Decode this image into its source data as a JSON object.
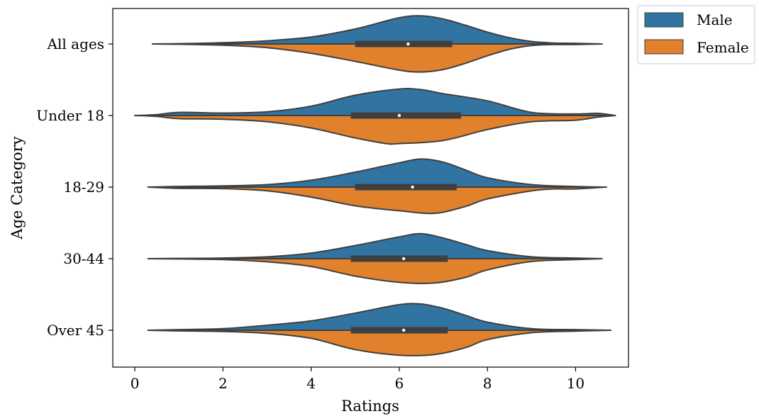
{
  "chart_data": {
    "type": "violin",
    "orientation": "horizontal",
    "split": true,
    "xlabel": "Ratings",
    "ylabel": "Age Category",
    "xlim": [
      -0.5,
      11.2
    ],
    "xticks": [
      0,
      2,
      4,
      6,
      8,
      10
    ],
    "grid": false,
    "legend_placement": "outside top-right",
    "categories": [
      "All ages",
      "Under 18",
      "18-29",
      "30-44",
      "Over 45"
    ],
    "series": [
      {
        "name": "Male",
        "color": "#3274a1"
      },
      {
        "name": "Female",
        "color": "#e1812c"
      }
    ],
    "violins": [
      {
        "category": "All ages",
        "box": {
          "q1": 5.0,
          "median": 6.2,
          "q3": 7.2,
          "min": 0.4,
          "max": 10.6
        },
        "male_density": [
          [
            0.4,
            0
          ],
          [
            1,
            0.01
          ],
          [
            2,
            0.04
          ],
          [
            3,
            0.1
          ],
          [
            4,
            0.22
          ],
          [
            5,
            0.48
          ],
          [
            6,
            0.84
          ],
          [
            6.5,
            0.9
          ],
          [
            7,
            0.8
          ],
          [
            7.5,
            0.6
          ],
          [
            8,
            0.38
          ],
          [
            8.5,
            0.2
          ],
          [
            9,
            0.08
          ],
          [
            9.5,
            0.03
          ],
          [
            10,
            0.02
          ],
          [
            10.6,
            0
          ]
        ],
        "female_density": [
          [
            0.4,
            0
          ],
          [
            1,
            0.01
          ],
          [
            2,
            0.04
          ],
          [
            3,
            0.12
          ],
          [
            4,
            0.3
          ],
          [
            5,
            0.56
          ],
          [
            6,
            0.84
          ],
          [
            6.5,
            0.9
          ],
          [
            7,
            0.82
          ],
          [
            7.5,
            0.62
          ],
          [
            8,
            0.38
          ],
          [
            8.5,
            0.17
          ],
          [
            9,
            0.05
          ],
          [
            9.5,
            0.02
          ],
          [
            10,
            0.02
          ],
          [
            10.6,
            0
          ]
        ]
      },
      {
        "category": "Under 18",
        "box": {
          "q1": 4.9,
          "median": 6.0,
          "q3": 7.4,
          "min": 0.0,
          "max": 10.9
        },
        "male_density": [
          [
            0,
            0
          ],
          [
            0.5,
            0.03
          ],
          [
            1,
            0.1
          ],
          [
            2,
            0.08
          ],
          [
            3,
            0.12
          ],
          [
            4,
            0.3
          ],
          [
            5,
            0.65
          ],
          [
            6,
            0.85
          ],
          [
            6.5,
            0.83
          ],
          [
            7,
            0.7
          ],
          [
            8,
            0.47
          ],
          [
            9,
            0.1
          ],
          [
            10,
            0.05
          ],
          [
            10.5,
            0.07
          ],
          [
            10.9,
            0
          ]
        ],
        "female_density": [
          [
            0,
            0
          ],
          [
            0.5,
            0.03
          ],
          [
            1,
            0.1
          ],
          [
            2,
            0.12
          ],
          [
            3,
            0.2
          ],
          [
            4,
            0.4
          ],
          [
            5,
            0.72
          ],
          [
            5.7,
            0.9
          ],
          [
            6,
            0.9
          ],
          [
            7,
            0.8
          ],
          [
            8,
            0.45
          ],
          [
            9,
            0.2
          ],
          [
            10,
            0.15
          ],
          [
            10.5,
            0.05
          ],
          [
            10.9,
            0
          ]
        ]
      },
      {
        "category": "18-29",
        "box": {
          "q1": 5.0,
          "median": 6.3,
          "q3": 7.3,
          "min": 0.3,
          "max": 10.7
        },
        "male_density": [
          [
            0.3,
            0
          ],
          [
            1,
            0.02
          ],
          [
            2,
            0.04
          ],
          [
            3,
            0.08
          ],
          [
            4,
            0.22
          ],
          [
            5,
            0.48
          ],
          [
            6,
            0.78
          ],
          [
            6.5,
            0.9
          ],
          [
            7,
            0.8
          ],
          [
            7.5,
            0.55
          ],
          [
            8,
            0.3
          ],
          [
            9,
            0.08
          ],
          [
            10,
            0.02
          ],
          [
            10.7,
            0
          ]
        ],
        "female_density": [
          [
            0.3,
            0
          ],
          [
            1,
            0.04
          ],
          [
            2,
            0.05
          ],
          [
            3,
            0.12
          ],
          [
            4,
            0.32
          ],
          [
            5,
            0.6
          ],
          [
            6,
            0.76
          ],
          [
            6.8,
            0.84
          ],
          [
            7.5,
            0.62
          ],
          [
            8,
            0.38
          ],
          [
            9,
            0.12
          ],
          [
            9.5,
            0.06
          ],
          [
            10,
            0.06
          ],
          [
            10.7,
            0
          ]
        ]
      },
      {
        "category": "30-44",
        "box": {
          "q1": 4.9,
          "median": 6.1,
          "q3": 7.1,
          "min": 0.3,
          "max": 10.6
        },
        "male_density": [
          [
            0.3,
            0
          ],
          [
            1,
            0.01
          ],
          [
            2,
            0.02
          ],
          [
            3,
            0.06
          ],
          [
            4,
            0.18
          ],
          [
            5,
            0.42
          ],
          [
            6,
            0.7
          ],
          [
            6.5,
            0.8
          ],
          [
            7,
            0.66
          ],
          [
            7.5,
            0.46
          ],
          [
            8,
            0.26
          ],
          [
            9,
            0.06
          ],
          [
            10,
            0.02
          ],
          [
            10.6,
            0
          ]
        ],
        "female_density": [
          [
            0.3,
            0
          ],
          [
            1,
            0.01
          ],
          [
            2,
            0.03
          ],
          [
            3,
            0.1
          ],
          [
            4,
            0.25
          ],
          [
            5,
            0.56
          ],
          [
            6,
            0.76
          ],
          [
            6.8,
            0.78
          ],
          [
            7.5,
            0.6
          ],
          [
            8,
            0.36
          ],
          [
            9,
            0.09
          ],
          [
            10,
            0.03
          ],
          [
            10.6,
            0
          ]
        ]
      },
      {
        "category": "Over 45",
        "box": {
          "q1": 4.9,
          "median": 6.1,
          "q3": 7.1,
          "min": 0.3,
          "max": 10.8
        },
        "male_density": [
          [
            0.3,
            0
          ],
          [
            1,
            0.02
          ],
          [
            2,
            0.05
          ],
          [
            3,
            0.16
          ],
          [
            4,
            0.3
          ],
          [
            5,
            0.55
          ],
          [
            6,
            0.82
          ],
          [
            6.5,
            0.84
          ],
          [
            7,
            0.7
          ],
          [
            7.5,
            0.48
          ],
          [
            8,
            0.26
          ],
          [
            9,
            0.05
          ],
          [
            10,
            0.02
          ],
          [
            10.8,
            0
          ]
        ],
        "female_density": [
          [
            0.3,
            0
          ],
          [
            1,
            0.02
          ],
          [
            2,
            0.04
          ],
          [
            3,
            0.1
          ],
          [
            4,
            0.26
          ],
          [
            5,
            0.62
          ],
          [
            6,
            0.8
          ],
          [
            6.8,
            0.78
          ],
          [
            7.5,
            0.56
          ],
          [
            8,
            0.3
          ],
          [
            9,
            0.08
          ],
          [
            10,
            0.03
          ],
          [
            10.8,
            0
          ]
        ]
      }
    ]
  }
}
